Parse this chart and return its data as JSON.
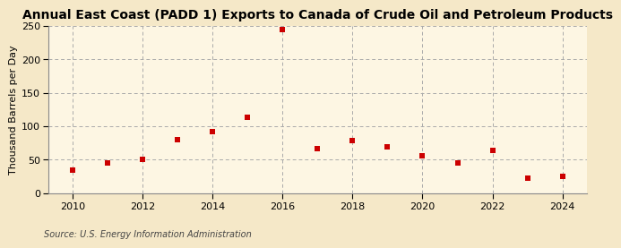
{
  "title": "Annual East Coast (PADD 1) Exports to Canada of Crude Oil and Petroleum Products",
  "ylabel": "Thousand Barrels per Day",
  "source": "Source: U.S. Energy Information Administration",
  "background_color": "#f5e8c8",
  "plot_background_color": "#fdf6e3",
  "marker_color": "#cc0000",
  "years": [
    2010,
    2011,
    2012,
    2013,
    2014,
    2015,
    2016,
    2017,
    2018,
    2019,
    2020,
    2021,
    2022,
    2023,
    2024
  ],
  "values": [
    35,
    45,
    50,
    80,
    92,
    113,
    245,
    67,
    79,
    70,
    56,
    45,
    64,
    22,
    25
  ],
  "ylim": [
    0,
    250
  ],
  "yticks": [
    0,
    50,
    100,
    150,
    200,
    250
  ],
  "xticks": [
    2010,
    2012,
    2014,
    2016,
    2018,
    2020,
    2022,
    2024
  ],
  "title_fontsize": 10,
  "label_fontsize": 8,
  "tick_fontsize": 8,
  "source_fontsize": 7,
  "marker_size": 4,
  "grid_color": "#aaaaaa",
  "grid_style": "--"
}
